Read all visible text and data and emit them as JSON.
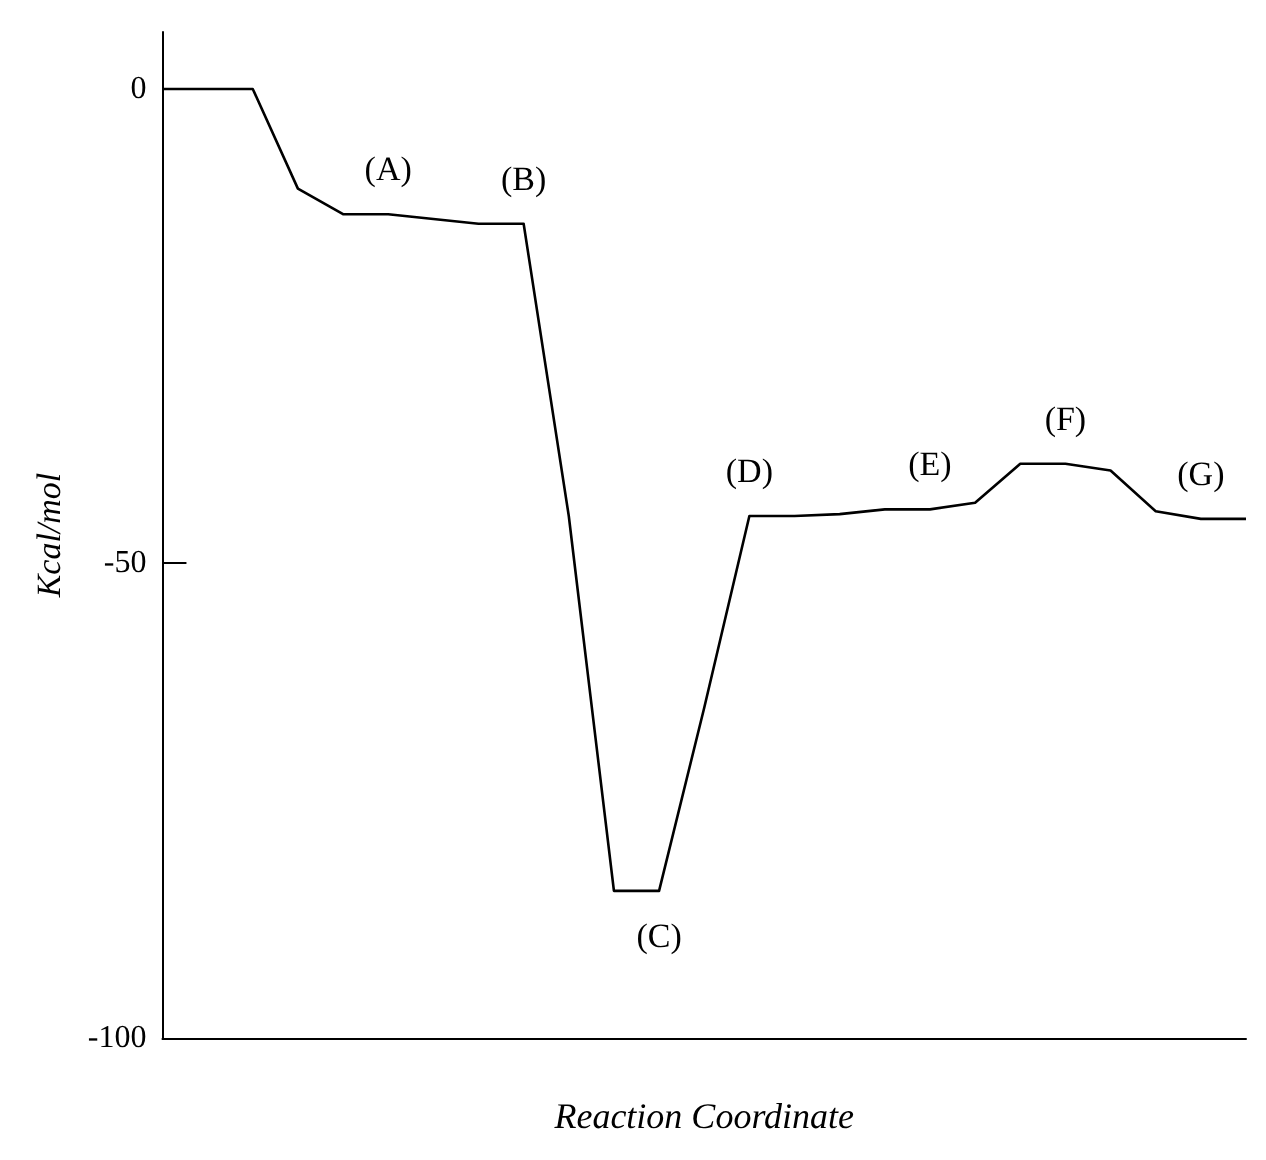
{
  "chart_data": {
    "type": "line",
    "xlabel": "Reaction Coordinate",
    "ylabel": "Kcal/mol",
    "categories": [
      null,
      null,
      null,
      null,
      null,
      null,
      null,
      null,
      null,
      null,
      null,
      null,
      null,
      null,
      null,
      null,
      null,
      null,
      null,
      null,
      null,
      null,
      null,
      null,
      null
    ],
    "series": [
      {
        "color": "#000000",
        "values": [
          0,
          0,
          0,
          -10.5,
          -13.2,
          -13.2,
          -13.7,
          -14.2,
          -14.2,
          -45,
          -84.5,
          -84.5,
          -65.2,
          -45,
          -45,
          -44.8,
          -44.3,
          -44.3,
          -43.6,
          -39.5,
          -39.5,
          -40.2,
          -44.5,
          -45.3,
          -45.3
        ],
        "value_labels": [
          null,
          null,
          null,
          null,
          null,
          "(A)",
          null,
          null,
          "(B)",
          null,
          null,
          "(C)",
          null,
          "(D)",
          null,
          null,
          null,
          "(E)",
          null,
          null,
          "(F)",
          null,
          null,
          "(G)",
          null
        ]
      }
    ],
    "ylim": [
      -100,
      6
    ],
    "yticks": [
      0,
      -50,
      -100
    ],
    "grid": false,
    "marker": "none",
    "line_style": "solid",
    "tick_labels": "y"
  }
}
